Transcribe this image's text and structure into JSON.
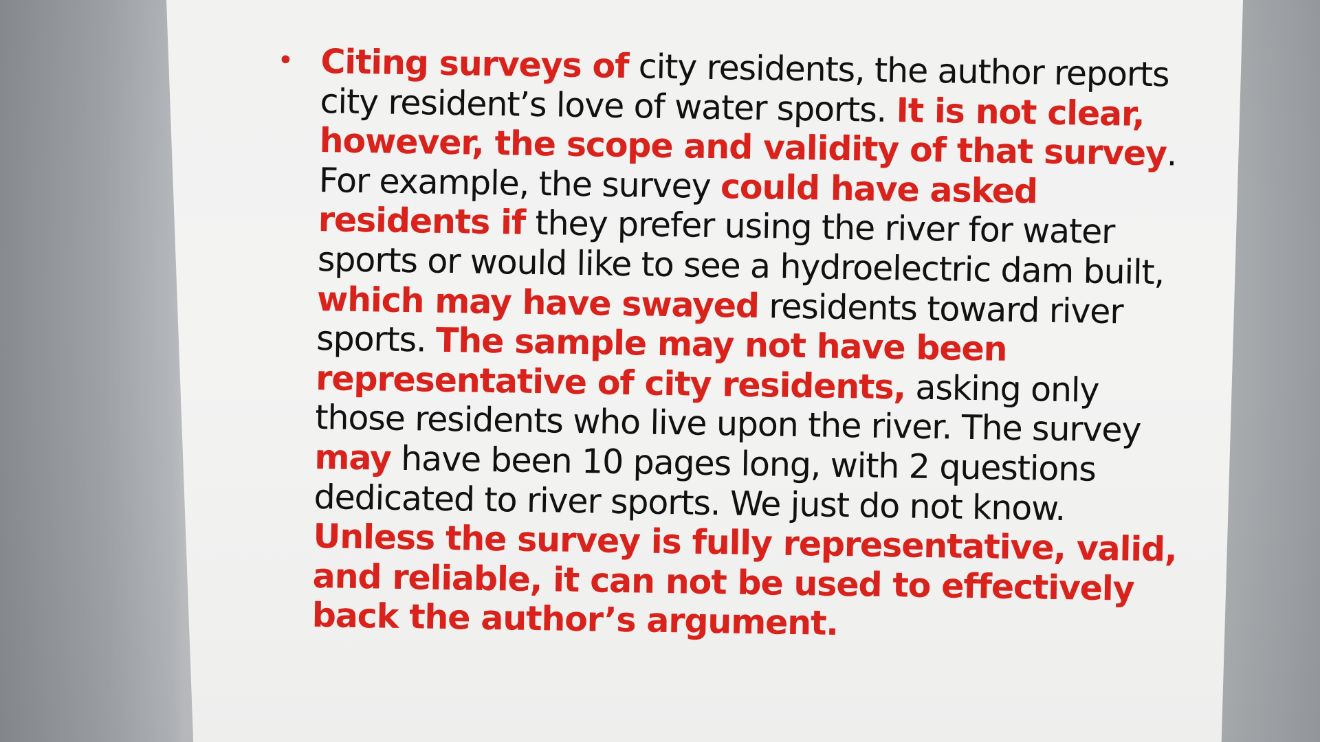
{
  "colors": {
    "highlight": "#d8221b",
    "text": "#111111",
    "slide_background": "#f2f2f1"
  },
  "slide": {
    "bullet_glyph": "•",
    "paragraph": [
      {
        "text": "Citing surveys of",
        "style": "red"
      },
      {
        "text": " city residents, the author reports city resident’s love of water sports. ",
        "style": "black"
      },
      {
        "text": "It is not clear, however, the scope and validity of that survey",
        "style": "red"
      },
      {
        "text": ". For example, the survey ",
        "style": "black"
      },
      {
        "text": "could have asked residents if",
        "style": "red"
      },
      {
        "text": " they prefer using the river for water sports or would like to see a hydroelectric dam built, ",
        "style": "black"
      },
      {
        "text": "which may have swayed",
        "style": "red"
      },
      {
        "text": " residents toward river sports. ",
        "style": "black"
      },
      {
        "text": "The sample may not have been representative of city residents,",
        "style": "red"
      },
      {
        "text": " asking only those residents who live upon the river. The survey ",
        "style": "black"
      },
      {
        "text": "may",
        "style": "red"
      },
      {
        "text": " have been 10 pages long, with 2 questions dedicated to river sports. We just do not know. ",
        "style": "black"
      },
      {
        "text": "Unless the survey is fully representative, valid, and reliable, it can not be used to effectively back the author’s argument.",
        "style": "red"
      }
    ]
  }
}
